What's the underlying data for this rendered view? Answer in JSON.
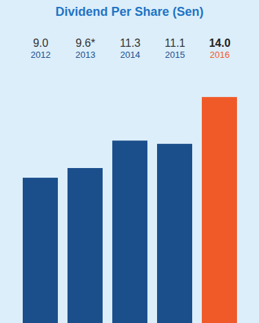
{
  "chart_data": {
    "type": "bar",
    "title": "Dividend Per Share (Sen)",
    "categories": [
      "2012",
      "2013",
      "2014",
      "2015",
      "2016"
    ],
    "values": [
      9.0,
      9.6,
      11.3,
      11.1,
      14.0
    ],
    "value_labels": [
      "9.0",
      "9.6*",
      "11.3",
      "11.1",
      "14.0"
    ],
    "colors": [
      "#1b4f8c",
      "#1b4f8c",
      "#1b4f8c",
      "#1b4f8c",
      "#f05a28"
    ],
    "ylim": [
      0,
      16
    ],
    "data_labels": true,
    "tick_labels": false
  }
}
